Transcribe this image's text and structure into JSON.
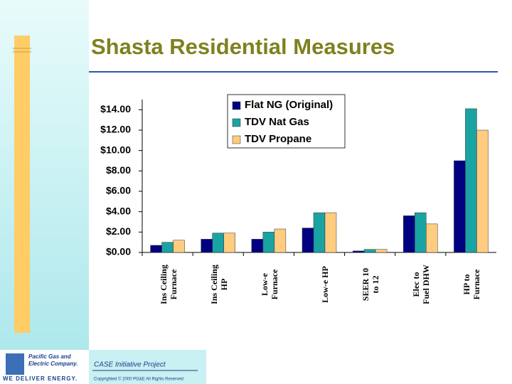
{
  "title": "Shasta Residential Measures",
  "chart_data": {
    "type": "bar",
    "categories": [
      "Ins Ceiling\nFurnace",
      "Ins Ceiling\nHP",
      "Low-e\nFurnace",
      "Low-e HP",
      "SEER 10\nto 12",
      "Elec to\nFuel DHW",
      "HP to\nFurnace"
    ],
    "series": [
      {
        "name": "Flat NG (Original)",
        "color": "#000080",
        "values": [
          0.7,
          1.3,
          1.3,
          2.4,
          0.15,
          3.6,
          9.0
        ]
      },
      {
        "name": "TDV Nat Gas",
        "color": "#1aa3a3",
        "values": [
          1.0,
          1.9,
          2.0,
          3.9,
          0.3,
          3.9,
          14.1
        ]
      },
      {
        "name": "TDV Propane",
        "color": "#ffcc80",
        "values": [
          1.2,
          1.9,
          2.3,
          3.9,
          0.3,
          2.8,
          12.0
        ]
      }
    ],
    "ylim": [
      0,
      15
    ],
    "yticks": [
      {
        "value": 0,
        "label": "$0.00"
      },
      {
        "value": 2,
        "label": "$2.00"
      },
      {
        "value": 4,
        "label": "$4.00"
      },
      {
        "value": 6,
        "label": "$6.00"
      },
      {
        "value": 8,
        "label": "$8.00"
      },
      {
        "value": 10,
        "label": "$10.00"
      },
      {
        "value": 12,
        "label": "$12.00"
      },
      {
        "value": 14,
        "label": "$14.00"
      }
    ],
    "legend": "top-left",
    "grid": false
  },
  "footer": {
    "company_1": "Pacific Gas and",
    "company_2": "Electric Company.",
    "slogan": "WE DELIVER ENERGY.",
    "project": "CASE Initiative Project",
    "copyright": "Copyrighted © 2000 PG&E All Rights Reserved"
  }
}
